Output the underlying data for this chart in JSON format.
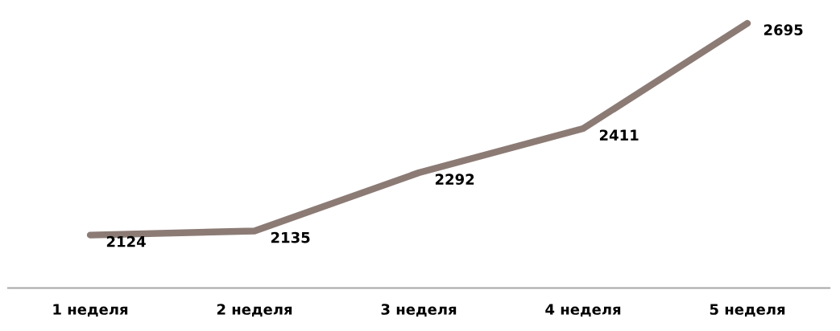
{
  "chart_data": {
    "type": "line",
    "categories": [
      "1 неделя",
      "2 неделя",
      "3 неделя",
      "4 неделя",
      "5 неделя"
    ],
    "series": [
      {
        "color": "#8c7b75",
        "values": [
          2124,
          2135,
          2292,
          2411,
          2695
        ]
      }
    ],
    "tick_labels": "x",
    "data_labels": true,
    "grid": false,
    "legend": false,
    "marker": "none",
    "line_style": "solid"
  }
}
